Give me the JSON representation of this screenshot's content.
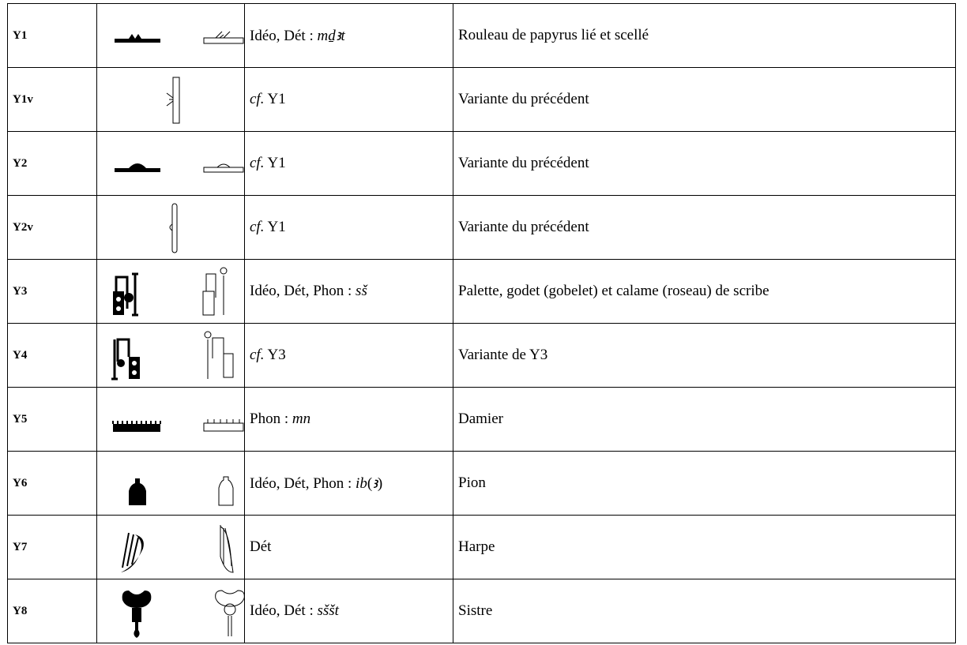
{
  "table": {
    "rows": [
      {
        "code": "Y1",
        "reading": [
          {
            "t": "Idéo, Dét : "
          },
          {
            "t": "mḏꜣt",
            "i": true
          }
        ],
        "meaning": "Rouleau de papyrus lié et scellé"
      },
      {
        "code": "Y1v",
        "reading": [
          {
            "t": "cf.",
            "i": true
          },
          {
            "t": " Y1"
          }
        ],
        "meaning": "Variante du précédent"
      },
      {
        "code": "Y2",
        "reading": [
          {
            "t": "cf.",
            "i": true
          },
          {
            "t": " Y1"
          }
        ],
        "meaning": "Variante du précédent"
      },
      {
        "code": "Y2v",
        "reading": [
          {
            "t": "cf.",
            "i": true
          },
          {
            "t": " Y1"
          }
        ],
        "meaning": "Variante du précédent"
      },
      {
        "code": "Y3",
        "reading": [
          {
            "t": "Idéo, Dét, Phon : "
          },
          {
            "t": "sš",
            "i": true
          }
        ],
        "meaning": "Palette, godet (gobelet) et calame (roseau) de scribe"
      },
      {
        "code": "Y4",
        "reading": [
          {
            "t": "cf.",
            "i": true
          },
          {
            "t": " Y3"
          }
        ],
        "meaning": "Variante de Y3"
      },
      {
        "code": "Y5",
        "reading": [
          {
            "t": "Phon : "
          },
          {
            "t": "mn",
            "i": true
          }
        ],
        "meaning": "Damier"
      },
      {
        "code": "Y6",
        "reading": [
          {
            "t": "Idéo, Dét, Phon : "
          },
          {
            "t": "ib",
            "i": true
          },
          {
            "t": "("
          },
          {
            "t": "ꜣ",
            "i": true
          },
          {
            "t": ")"
          }
        ],
        "meaning": "Pion"
      },
      {
        "code": "Y7",
        "reading": [
          {
            "t": "Dét"
          }
        ],
        "meaning": "Harpe"
      },
      {
        "code": "Y8",
        "reading": [
          {
            "t": "Idéo, Dét : "
          },
          {
            "t": "sššt",
            "i": true
          }
        ],
        "meaning": "Sistre"
      }
    ]
  }
}
